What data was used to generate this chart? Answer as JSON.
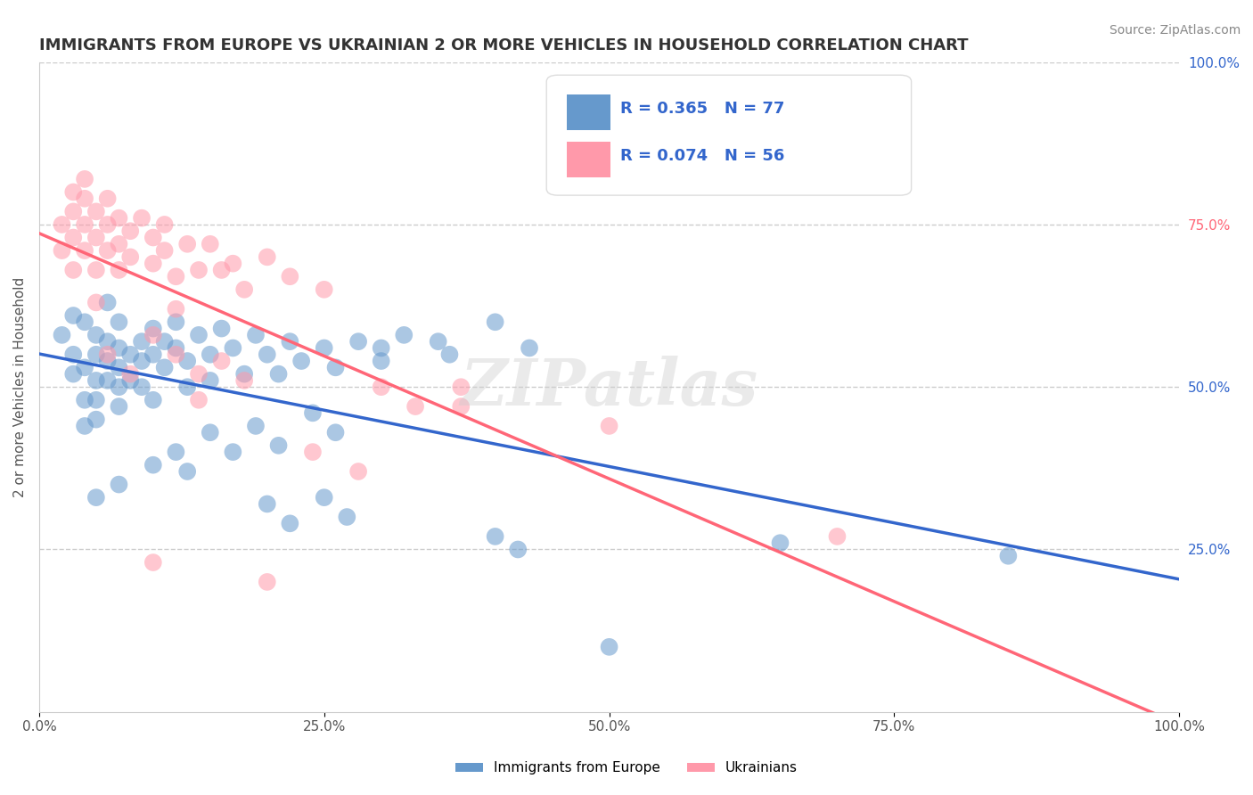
{
  "title": "IMMIGRANTS FROM EUROPE VS UKRAINIAN 2 OR MORE VEHICLES IN HOUSEHOLD CORRELATION CHART",
  "source_text": "Source: ZipAtlas.com",
  "xlabel": "",
  "ylabel": "2 or more Vehicles in Household",
  "xlim": [
    0.0,
    1.0
  ],
  "ylim": [
    0.0,
    1.0
  ],
  "xtick_labels": [
    "0.0%",
    "25.0%",
    "50.0%",
    "75.0%",
    "100.0%"
  ],
  "xtick_vals": [
    0.0,
    0.25,
    0.5,
    0.75,
    1.0
  ],
  "ytick_labels_right": [
    "100.0%",
    "75.0%",
    "50.0%",
    "25.0%"
  ],
  "ytick_vals_right": [
    1.0,
    0.75,
    0.5,
    0.25
  ],
  "legend_label1": "Immigrants from Europe",
  "legend_label2": "Ukrainians",
  "R1": 0.365,
  "N1": 77,
  "R2": 0.074,
  "N2": 56,
  "blue_color": "#6699CC",
  "pink_color": "#FF99AA",
  "blue_line_color": "#3366CC",
  "pink_line_color": "#FF6677",
  "title_color": "#333333",
  "grid_color": "#CCCCCC",
  "watermark_color": "#CCCCCC",
  "ytick_colors": [
    "#3366CC",
    "#FF6677",
    "#3366CC",
    "#3366CC"
  ],
  "blue_scatter": [
    [
      0.02,
      0.58
    ],
    [
      0.03,
      0.61
    ],
    [
      0.03,
      0.55
    ],
    [
      0.03,
      0.52
    ],
    [
      0.04,
      0.6
    ],
    [
      0.04,
      0.53
    ],
    [
      0.04,
      0.48
    ],
    [
      0.04,
      0.44
    ],
    [
      0.05,
      0.58
    ],
    [
      0.05,
      0.55
    ],
    [
      0.05,
      0.51
    ],
    [
      0.05,
      0.48
    ],
    [
      0.05,
      0.45
    ],
    [
      0.06,
      0.63
    ],
    [
      0.06,
      0.57
    ],
    [
      0.06,
      0.54
    ],
    [
      0.06,
      0.51
    ],
    [
      0.07,
      0.6
    ],
    [
      0.07,
      0.56
    ],
    [
      0.07,
      0.53
    ],
    [
      0.07,
      0.5
    ],
    [
      0.07,
      0.47
    ],
    [
      0.08,
      0.55
    ],
    [
      0.08,
      0.51
    ],
    [
      0.09,
      0.57
    ],
    [
      0.09,
      0.54
    ],
    [
      0.09,
      0.5
    ],
    [
      0.1,
      0.59
    ],
    [
      0.1,
      0.55
    ],
    [
      0.1,
      0.48
    ],
    [
      0.11,
      0.57
    ],
    [
      0.11,
      0.53
    ],
    [
      0.12,
      0.6
    ],
    [
      0.12,
      0.56
    ],
    [
      0.13,
      0.54
    ],
    [
      0.13,
      0.5
    ],
    [
      0.14,
      0.58
    ],
    [
      0.15,
      0.55
    ],
    [
      0.15,
      0.51
    ],
    [
      0.16,
      0.59
    ],
    [
      0.17,
      0.56
    ],
    [
      0.18,
      0.52
    ],
    [
      0.19,
      0.58
    ],
    [
      0.2,
      0.55
    ],
    [
      0.21,
      0.52
    ],
    [
      0.22,
      0.57
    ],
    [
      0.23,
      0.54
    ],
    [
      0.25,
      0.56
    ],
    [
      0.26,
      0.53
    ],
    [
      0.28,
      0.57
    ],
    [
      0.3,
      0.56
    ],
    [
      0.3,
      0.54
    ],
    [
      0.32,
      0.58
    ],
    [
      0.35,
      0.57
    ],
    [
      0.36,
      0.55
    ],
    [
      0.4,
      0.6
    ],
    [
      0.43,
      0.56
    ],
    [
      0.12,
      0.4
    ],
    [
      0.13,
      0.37
    ],
    [
      0.15,
      0.43
    ],
    [
      0.17,
      0.4
    ],
    [
      0.19,
      0.44
    ],
    [
      0.21,
      0.41
    ],
    [
      0.24,
      0.46
    ],
    [
      0.26,
      0.43
    ],
    [
      0.05,
      0.33
    ],
    [
      0.07,
      0.35
    ],
    [
      0.1,
      0.38
    ],
    [
      0.2,
      0.32
    ],
    [
      0.22,
      0.29
    ],
    [
      0.25,
      0.33
    ],
    [
      0.27,
      0.3
    ],
    [
      0.4,
      0.27
    ],
    [
      0.42,
      0.25
    ],
    [
      0.5,
      0.1
    ],
    [
      0.65,
      0.26
    ],
    [
      0.85,
      0.24
    ]
  ],
  "pink_scatter": [
    [
      0.02,
      0.75
    ],
    [
      0.02,
      0.71
    ],
    [
      0.03,
      0.8
    ],
    [
      0.03,
      0.77
    ],
    [
      0.03,
      0.73
    ],
    [
      0.03,
      0.68
    ],
    [
      0.04,
      0.82
    ],
    [
      0.04,
      0.79
    ],
    [
      0.04,
      0.75
    ],
    [
      0.04,
      0.71
    ],
    [
      0.05,
      0.77
    ],
    [
      0.05,
      0.73
    ],
    [
      0.05,
      0.68
    ],
    [
      0.05,
      0.63
    ],
    [
      0.06,
      0.79
    ],
    [
      0.06,
      0.75
    ],
    [
      0.06,
      0.71
    ],
    [
      0.07,
      0.76
    ],
    [
      0.07,
      0.72
    ],
    [
      0.07,
      0.68
    ],
    [
      0.08,
      0.74
    ],
    [
      0.08,
      0.7
    ],
    [
      0.09,
      0.76
    ],
    [
      0.1,
      0.73
    ],
    [
      0.1,
      0.69
    ],
    [
      0.11,
      0.75
    ],
    [
      0.11,
      0.71
    ],
    [
      0.12,
      0.67
    ],
    [
      0.12,
      0.62
    ],
    [
      0.13,
      0.72
    ],
    [
      0.14,
      0.68
    ],
    [
      0.15,
      0.72
    ],
    [
      0.16,
      0.68
    ],
    [
      0.17,
      0.69
    ],
    [
      0.18,
      0.65
    ],
    [
      0.2,
      0.7
    ],
    [
      0.22,
      0.67
    ],
    [
      0.25,
      0.65
    ],
    [
      0.06,
      0.55
    ],
    [
      0.08,
      0.52
    ],
    [
      0.1,
      0.58
    ],
    [
      0.12,
      0.55
    ],
    [
      0.14,
      0.52
    ],
    [
      0.14,
      0.48
    ],
    [
      0.16,
      0.54
    ],
    [
      0.18,
      0.51
    ],
    [
      0.24,
      0.4
    ],
    [
      0.28,
      0.37
    ],
    [
      0.1,
      0.23
    ],
    [
      0.2,
      0.2
    ],
    [
      0.3,
      0.5
    ],
    [
      0.33,
      0.47
    ],
    [
      0.37,
      0.5
    ],
    [
      0.37,
      0.47
    ],
    [
      0.5,
      0.44
    ],
    [
      0.7,
      0.27
    ]
  ]
}
